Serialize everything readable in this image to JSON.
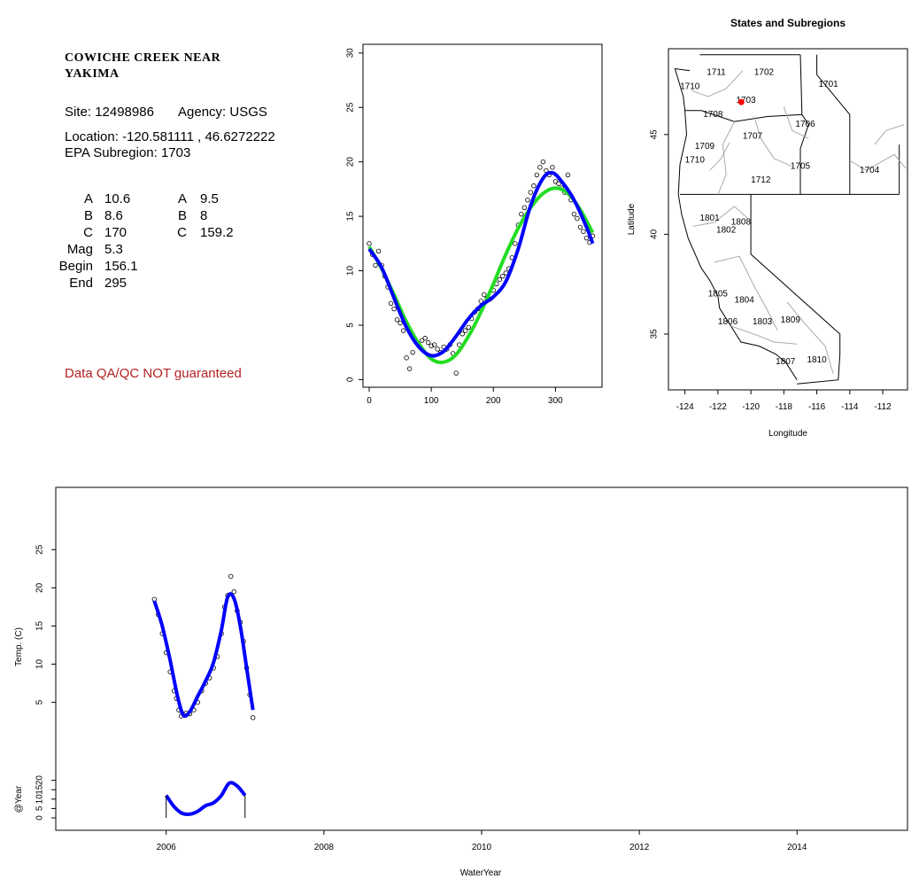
{
  "site": {
    "title_line1": "COWICHE CREEK NEAR",
    "title_line2": "YAKIMA",
    "site_label": "Site:",
    "site_id": "12498986",
    "agency_label": "Agency:",
    "agency": "USGS",
    "location_label": "Location:",
    "location": "-120.581111 , 46.6272222",
    "subregion_label": "EPA Subregion:",
    "subregion": "1703",
    "params_left": [
      {
        "label": "A",
        "value": "10.6"
      },
      {
        "label": "B",
        "value": "8.6"
      },
      {
        "label": "C",
        "value": "170"
      },
      {
        "label": "Mag",
        "value": "5.3"
      },
      {
        "label": "Begin",
        "value": "156.1"
      },
      {
        "label": "End",
        "value": "295"
      }
    ],
    "params_right": [
      {
        "label": "A",
        "value": "9.5"
      },
      {
        "label": "B",
        "value": "8"
      },
      {
        "label": "C",
        "value": "159.2"
      }
    ],
    "qa_note": "Data QA/QC NOT guaranteed"
  },
  "colors": {
    "fit_blue": "#0000ff",
    "fit_green": "#22dd22",
    "site_marker": "#ff0000",
    "qa_text": "#b22222",
    "map_boundary": "#aaaaaa"
  },
  "chart_data": [
    {
      "type": "scatter",
      "title": "",
      "xlabel": "",
      "ylabel": "",
      "xlim": [
        -10,
        375
      ],
      "ylim": [
        -0.7,
        30.8
      ],
      "xticks": [
        0,
        100,
        200,
        300
      ],
      "yticks": [
        0,
        5,
        10,
        15,
        20,
        25,
        30
      ],
      "grid": false,
      "series": [
        {
          "style": "points",
          "x": [
            0,
            5,
            10,
            15,
            20,
            25,
            30,
            35,
            40,
            45,
            50,
            55,
            60,
            65,
            70,
            75,
            80,
            85,
            90,
            95,
            100,
            105,
            110,
            115,
            120,
            125,
            130,
            135,
            140,
            145,
            150,
            155,
            160,
            165,
            170,
            175,
            180,
            185,
            190,
            195,
            200,
            205,
            210,
            215,
            220,
            225,
            230,
            235,
            240,
            245,
            250,
            255,
            260,
            265,
            270,
            275,
            280,
            285,
            290,
            295,
            300,
            305,
            310,
            315,
            320,
            325,
            330,
            335,
            340,
            345,
            350,
            355,
            360
          ],
          "y": [
            12.5,
            11.5,
            10.5,
            11.8,
            10.5,
            9.5,
            8.5,
            7,
            6.5,
            5.5,
            5.2,
            4.5,
            2,
            1,
            2.5,
            3.5,
            3.2,
            3.6,
            3.8,
            3.4,
            3.1,
            3.2,
            2.8,
            2.5,
            3,
            2.8,
            3.2,
            2.4,
            0.6,
            3.2,
            4.2,
            4.5,
            4.8,
            5.6,
            6.2,
            6.5,
            7.2,
            7.8,
            7.5,
            7.4,
            8.2,
            8.8,
            9.2,
            9.5,
            9.8,
            10.2,
            11.2,
            12.5,
            14.2,
            15.2,
            15.8,
            16.5,
            17.2,
            17.8,
            18.8,
            19.5,
            20,
            19.2,
            18.8,
            19.5,
            18.2,
            18,
            17.6,
            17.2,
            18.8,
            16.5,
            15.2,
            14.8,
            14,
            13.6,
            13,
            12.6,
            13.2
          ]
        },
        {
          "name": "",
          "style": "line",
          "color": "#22dd22",
          "x": [
            0,
            20,
            40,
            60,
            80,
            100,
            120,
            140,
            160,
            180,
            200,
            220,
            240,
            260,
            280,
            300,
            320,
            340,
            360
          ],
          "y": [
            12.2,
            10.2,
            7.8,
            5.3,
            3.3,
            1.9,
            1.6,
            2.3,
            4,
            6.2,
            8.8,
            11.5,
            13.9,
            15.8,
            17.1,
            17.6,
            17.1,
            15.6,
            13.5
          ]
        },
        {
          "name": "",
          "style": "line",
          "color": "#0000ff",
          "x": [
            0,
            20,
            40,
            60,
            80,
            100,
            120,
            140,
            160,
            180,
            200,
            220,
            240,
            260,
            280,
            295,
            310,
            330,
            350,
            360
          ],
          "y": [
            12,
            10.3,
            7.5,
            4.8,
            3,
            2.2,
            2.6,
            4,
            5.6,
            6.8,
            7.6,
            9,
            12,
            16,
            18.5,
            19,
            18.2,
            16.5,
            14,
            12.5
          ]
        }
      ]
    },
    {
      "type": "map",
      "title": "States and Subregions",
      "xlabel": "Longitude",
      "ylabel": "Latitude",
      "xlim": [
        -125,
        -110.5
      ],
      "ylim": [
        32.2,
        49.3
      ],
      "xticks": [
        -124,
        -122,
        -120,
        -118,
        -116,
        -114,
        -112
      ],
      "yticks": [
        35,
        40,
        45
      ],
      "site_point": {
        "lon": -120.581111,
        "lat": 46.6272222
      },
      "region_labels": [
        {
          "text": "1711",
          "lon": -122.1,
          "lat": 48.1
        },
        {
          "text": "1702",
          "lon": -119.2,
          "lat": 48.1
        },
        {
          "text": "1701",
          "lon": -115.3,
          "lat": 47.5
        },
        {
          "text": "1710",
          "lon": -123.7,
          "lat": 47.4
        },
        {
          "text": "1703",
          "lon": -120.3,
          "lat": 46.7
        },
        {
          "text": "1708",
          "lon": -122.3,
          "lat": 46.0
        },
        {
          "text": "1706",
          "lon": -116.7,
          "lat": 45.5
        },
        {
          "text": "1707",
          "lon": -119.9,
          "lat": 44.9
        },
        {
          "text": "1709",
          "lon": -122.8,
          "lat": 44.4
        },
        {
          "text": "1710",
          "lon": -123.4,
          "lat": 43.7
        },
        {
          "text": "1705",
          "lon": -117.0,
          "lat": 43.4
        },
        {
          "text": "1704",
          "lon": -112.8,
          "lat": 43.2
        },
        {
          "text": "1712",
          "lon": -119.4,
          "lat": 42.7
        },
        {
          "text": "1801",
          "lon": -122.5,
          "lat": 40.8
        },
        {
          "text": "1808",
          "lon": -120.6,
          "lat": 40.6
        },
        {
          "text": "1802",
          "lon": -121.5,
          "lat": 40.2
        },
        {
          "text": "1805",
          "lon": -122.0,
          "lat": 37.0
        },
        {
          "text": "1804",
          "lon": -120.4,
          "lat": 36.7
        },
        {
          "text": "1806",
          "lon": -121.4,
          "lat": 35.6
        },
        {
          "text": "1803",
          "lon": -119.3,
          "lat": 35.6
        },
        {
          "text": "1809",
          "lon": -117.6,
          "lat": 35.7
        },
        {
          "text": "1810",
          "lon": -116.0,
          "lat": 33.7
        },
        {
          "text": "1807",
          "lon": -117.9,
          "lat": 33.6
        }
      ]
    },
    {
      "type": "scatter",
      "title": "",
      "xlabel": "WaterYear",
      "ylabel": "Temp. (C)",
      "ylabel2": "@Year",
      "xlim": [
        2004.6,
        2015.4
      ],
      "ylim_top": [
        -0.5,
        32
      ],
      "ylim_bottom": [
        0,
        25
      ],
      "xticks": [
        2006,
        2008,
        2010,
        2012,
        2014
      ],
      "yticks_top": [
        5,
        10,
        15,
        20,
        25
      ],
      "yticks_bottom": [
        0,
        5,
        10,
        15,
        20
      ],
      "grid": false,
      "series": [
        {
          "style": "points",
          "x": [
            2005.85,
            2005.9,
            2005.95,
            2006.0,
            2006.05,
            2006.1,
            2006.13,
            2006.16,
            2006.19,
            2006.22,
            2006.25,
            2006.3,
            2006.35,
            2006.4,
            2006.45,
            2006.5,
            2006.55,
            2006.6,
            2006.65,
            2006.7,
            2006.74,
            2006.78,
            2006.82,
            2006.86,
            2006.9,
            2006.94,
            2006.98,
            2007.02,
            2007.06,
            2007.1
          ],
          "y": [
            18.5,
            16.5,
            14,
            11.5,
            9,
            6.5,
            5.5,
            4,
            3.2,
            3.4,
            3.6,
            3.5,
            4,
            5,
            6.5,
            7.5,
            8.2,
            9.5,
            11,
            14,
            17.5,
            19,
            21.5,
            19.5,
            17,
            15.5,
            13,
            9.5,
            6,
            3
          ]
        },
        {
          "name": "",
          "style": "line",
          "color": "#0000ff",
          "x": [
            2005.85,
            2005.95,
            2006.05,
            2006.15,
            2006.22,
            2006.3,
            2006.4,
            2006.5,
            2006.6,
            2006.7,
            2006.78,
            2006.86,
            2006.94,
            2007.02,
            2007.1
          ],
          "y": [
            18.3,
            15,
            10.5,
            5.5,
            3.3,
            3.8,
            5.8,
            7.8,
            10.2,
            14.5,
            18.8,
            18.6,
            15,
            9.5,
            4
          ]
        },
        {
          "name": "",
          "style": "line",
          "color": "#0000ff",
          "panel": "bottom",
          "x": [
            2006.0,
            2006.1,
            2006.2,
            2006.3,
            2006.4,
            2006.5,
            2006.6,
            2006.7,
            2006.8,
            2006.9,
            2007.0
          ],
          "y": [
            12,
            6,
            2.5,
            2,
            3.5,
            6.5,
            8,
            12,
            18.5,
            17,
            12
          ]
        }
      ]
    }
  ]
}
